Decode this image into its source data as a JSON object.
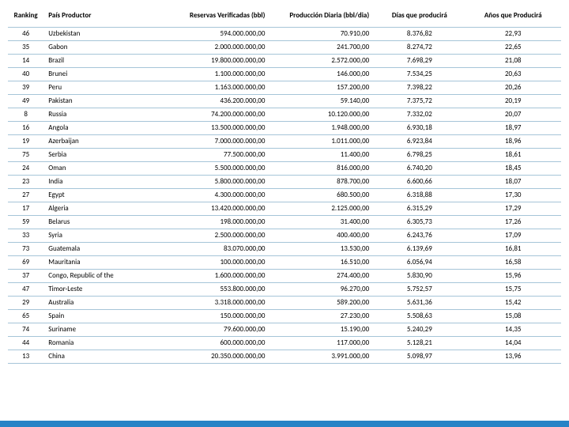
{
  "columns": [
    {
      "key": "rank",
      "label": "Ranking",
      "cls": "col-rank"
    },
    {
      "key": "country",
      "label": "País Productor",
      "cls": "col-country"
    },
    {
      "key": "reserves",
      "label": "Reservas Verificadas (bbl)",
      "cls": "col-reserves"
    },
    {
      "key": "prod",
      "label": "Producción Diaria (bbl/dia)",
      "cls": "col-prod"
    },
    {
      "key": "days",
      "label": "Días que producirá",
      "cls": "col-days"
    },
    {
      "key": "years",
      "label": "Años que Producirá",
      "cls": "col-years"
    }
  ],
  "rows": [
    {
      "rank": "46",
      "country": "Uzbekistan",
      "reserves": "594.000.000,00",
      "prod": "70.910,00",
      "days": "8.376,82",
      "years": "22,93"
    },
    {
      "rank": "35",
      "country": "Gabon",
      "reserves": "2.000.000.000,00",
      "prod": "241.700,00",
      "days": "8.274,72",
      "years": "22,65"
    },
    {
      "rank": "14",
      "country": "Brazil",
      "reserves": "19.800.000.000,00",
      "prod": "2.572.000,00",
      "days": "7.698,29",
      "years": "21,08"
    },
    {
      "rank": "40",
      "country": "Brunei",
      "reserves": "1.100.000.000,00",
      "prod": "146.000,00",
      "days": "7.534,25",
      "years": "20,63"
    },
    {
      "rank": "39",
      "country": "Peru",
      "reserves": "1.163.000.000,00",
      "prod": "157.200,00",
      "days": "7.398,22",
      "years": "20,26"
    },
    {
      "rank": "49",
      "country": "Pakistan",
      "reserves": "436.200.000,00",
      "prod": "59.140,00",
      "days": "7.375,72",
      "years": "20,19"
    },
    {
      "rank": "8",
      "country": "Russia",
      "reserves": "74.200.000.000,00",
      "prod": "10.120.000,00",
      "days": "7.332,02",
      "years": "20,07"
    },
    {
      "rank": "16",
      "country": "Angola",
      "reserves": "13.500.000.000,00",
      "prod": "1.948.000,00",
      "days": "6.930,18",
      "years": "18,97"
    },
    {
      "rank": "19",
      "country": "Azerbaijan",
      "reserves": "7.000.000.000,00",
      "prod": "1.011.000,00",
      "days": "6.923,84",
      "years": "18,96"
    },
    {
      "rank": "75",
      "country": "Serbia",
      "reserves": "77.500.000,00",
      "prod": "11.400,00",
      "days": "6.798,25",
      "years": "18,61"
    },
    {
      "rank": "24",
      "country": "Oman",
      "reserves": "5.500.000.000,00",
      "prod": "816.000,00",
      "days": "6.740,20",
      "years": "18,45"
    },
    {
      "rank": "23",
      "country": "India",
      "reserves": "5.800.000.000,00",
      "prod": "878.700,00",
      "days": "6.600,66",
      "years": "18,07"
    },
    {
      "rank": "27",
      "country": "Egypt",
      "reserves": "4.300.000.000,00",
      "prod": "680.500,00",
      "days": "6.318,88",
      "years": "17,30"
    },
    {
      "rank": "17",
      "country": "Algeria",
      "reserves": "13.420.000.000,00",
      "prod": "2.125.000,00",
      "days": "6.315,29",
      "years": "17,29"
    },
    {
      "rank": "59",
      "country": "Belarus",
      "reserves": "198.000.000,00",
      "prod": "31.400,00",
      "days": "6.305,73",
      "years": "17,26"
    },
    {
      "rank": "33",
      "country": "Syria",
      "reserves": "2.500.000.000,00",
      "prod": "400.400,00",
      "days": "6.243,76",
      "years": "17,09"
    },
    {
      "rank": "73",
      "country": "Guatemala",
      "reserves": "83.070.000,00",
      "prod": "13.530,00",
      "days": "6.139,69",
      "years": "16,81"
    },
    {
      "rank": "69",
      "country": "Mauritania",
      "reserves": "100.000.000,00",
      "prod": "16.510,00",
      "days": "6.056,94",
      "years": "16,58"
    },
    {
      "rank": "37",
      "country": "Congo, Republic of the",
      "reserves": "1.600.000.000,00",
      "prod": "274.400,00",
      "days": "5.830,90",
      "years": "15,96"
    },
    {
      "rank": "47",
      "country": "Timor-Leste",
      "reserves": "553.800.000,00",
      "prod": "96.270,00",
      "days": "5.752,57",
      "years": "15,75"
    },
    {
      "rank": "29",
      "country": "Australia",
      "reserves": "3.318.000.000,00",
      "prod": "589.200,00",
      "days": "5.631,36",
      "years": "15,42"
    },
    {
      "rank": "65",
      "country": "Spain",
      "reserves": "150.000.000,00",
      "prod": "27.230,00",
      "days": "5.508,63",
      "years": "15,08"
    },
    {
      "rank": "74",
      "country": "Suriname",
      "reserves": "79.600.000,00",
      "prod": "15.190,00",
      "days": "5.240,29",
      "years": "14,35"
    },
    {
      "rank": "44",
      "country": "Romania",
      "reserves": "600.000.000,00",
      "prod": "117.000,00",
      "days": "5.128,21",
      "years": "14,04"
    },
    {
      "rank": "13",
      "country": "China",
      "reserves": "20.350.000.000,00",
      "prod": "3.991.000,00",
      "days": "5.098,97",
      "years": "13,96"
    }
  ]
}
